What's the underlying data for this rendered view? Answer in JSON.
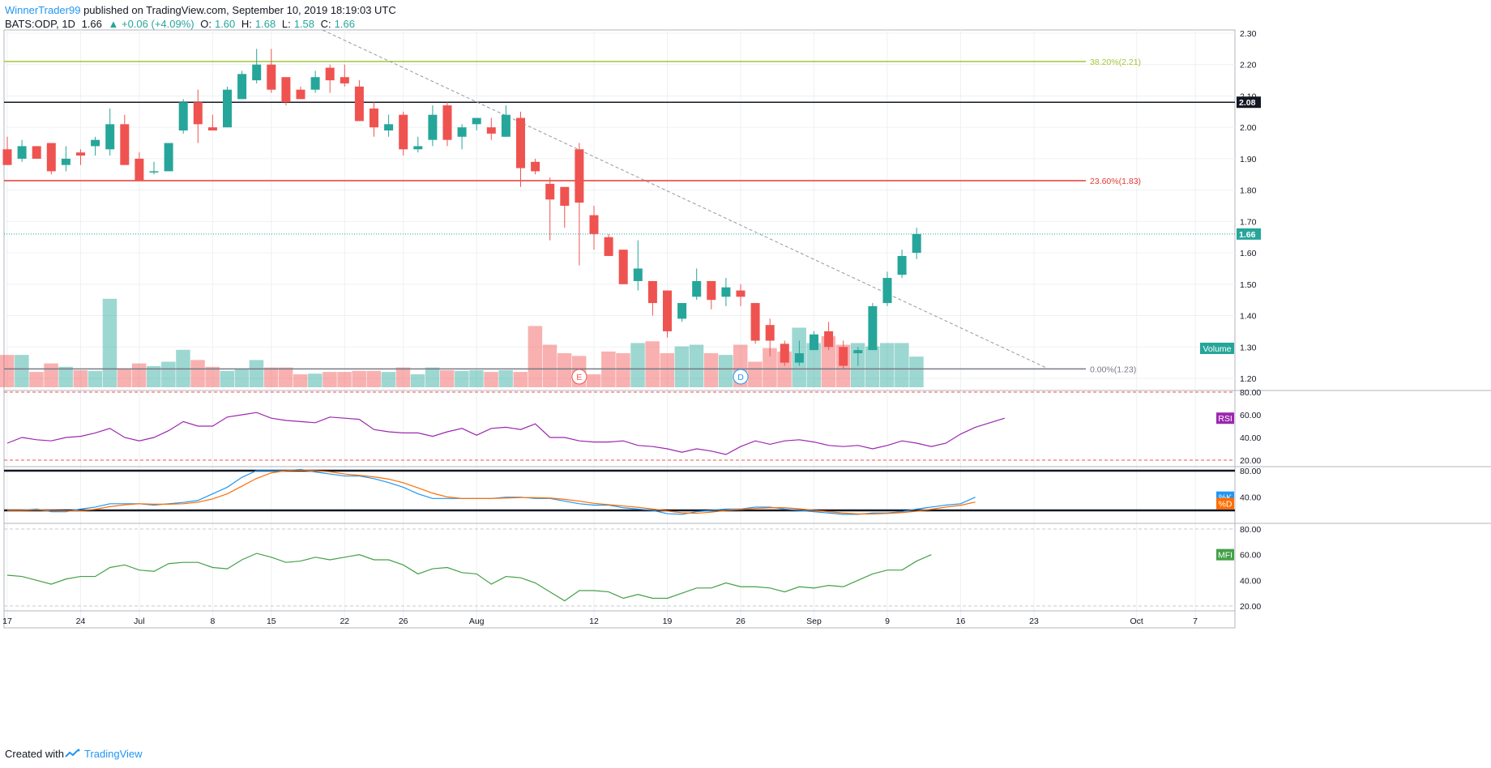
{
  "header": {
    "author": "WinnerTrader99",
    "published": "published on TradingView.com, September 10, 2019 18:19:03 UTC",
    "symbol": "BATS:ODP, 1D",
    "last": "1.66",
    "change": "▲ +0.06 (+4.09%)",
    "o_label": "O:",
    "o": "1.60",
    "h_label": "H:",
    "h": "1.68",
    "l_label": "L:",
    "l": "1.58",
    "c_label": "C:",
    "c": "1.66"
  },
  "footer": {
    "created_with": "Created with",
    "brand": "TradingView"
  },
  "colors": {
    "up": "#26a69a",
    "down": "#ef5350",
    "rsi": "#9c27b0",
    "stoch_k": "#2196f3",
    "stoch_d": "#ff6d00",
    "mfi": "#43a047",
    "fib_382": "#a4c639",
    "fib_236": "#e53935",
    "fib_0": "#787b86"
  },
  "chart_data": {
    "type": "candlestick",
    "price_axis": {
      "min": 1.2,
      "max": 2.3,
      "ticks": [
        "1.20",
        "1.30",
        "1.40",
        "1.50",
        "1.60",
        "1.70",
        "1.80",
        "1.90",
        "2.00",
        "2.10",
        "2.20",
        "2.30"
      ]
    },
    "time_axis": {
      "labels": [
        [
          "17",
          0
        ],
        [
          "24",
          5
        ],
        [
          "Jul",
          9
        ],
        [
          "8",
          14
        ],
        [
          "15",
          18
        ],
        [
          "22",
          23
        ],
        [
          "26",
          27
        ],
        [
          "Aug",
          32
        ],
        [
          "12",
          40
        ],
        [
          "19",
          45
        ],
        [
          "26",
          50
        ],
        [
          "Sep",
          55
        ],
        [
          "9",
          60
        ],
        [
          "16",
          65
        ],
        [
          "23",
          70
        ],
        [
          "Oct",
          77
        ],
        [
          "7",
          81
        ]
      ]
    },
    "candles": [
      {
        "o": 1.93,
        "h": 1.97,
        "l": 1.88,
        "c": 1.88
      },
      {
        "o": 1.9,
        "h": 1.96,
        "l": 1.89,
        "c": 1.94
      },
      {
        "o": 1.94,
        "h": 1.94,
        "l": 1.9,
        "c": 1.9
      },
      {
        "o": 1.95,
        "h": 1.95,
        "l": 1.85,
        "c": 1.86
      },
      {
        "o": 1.88,
        "h": 1.94,
        "l": 1.86,
        "c": 1.9
      },
      {
        "o": 1.92,
        "h": 1.93,
        "l": 1.88,
        "c": 1.91
      },
      {
        "o": 1.94,
        "h": 1.97,
        "l": 1.91,
        "c": 1.96
      },
      {
        "o": 1.93,
        "h": 2.06,
        "l": 1.91,
        "c": 2.01
      },
      {
        "o": 2.01,
        "h": 2.04,
        "l": 1.88,
        "c": 1.88
      },
      {
        "o": 1.9,
        "h": 1.92,
        "l": 1.83,
        "c": 1.83
      },
      {
        "o": 1.86,
        "h": 1.89,
        "l": 1.85,
        "c": 1.86
      },
      {
        "o": 1.86,
        "h": 1.95,
        "l": 1.86,
        "c": 1.95
      },
      {
        "o": 1.99,
        "h": 2.09,
        "l": 1.98,
        "c": 2.08
      },
      {
        "o": 2.08,
        "h": 2.12,
        "l": 1.95,
        "c": 2.01
      },
      {
        "o": 2.0,
        "h": 2.04,
        "l": 1.99,
        "c": 1.99
      },
      {
        "o": 2.0,
        "h": 2.13,
        "l": 2.0,
        "c": 2.12
      },
      {
        "o": 2.09,
        "h": 2.18,
        "l": 2.09,
        "c": 2.17
      },
      {
        "o": 2.15,
        "h": 2.25,
        "l": 2.14,
        "c": 2.2
      },
      {
        "o": 2.2,
        "h": 2.25,
        "l": 2.11,
        "c": 2.12
      },
      {
        "o": 2.16,
        "h": 2.16,
        "l": 2.07,
        "c": 2.08
      },
      {
        "o": 2.12,
        "h": 2.13,
        "l": 2.09,
        "c": 2.09
      },
      {
        "o": 2.12,
        "h": 2.18,
        "l": 2.11,
        "c": 2.16
      },
      {
        "o": 2.19,
        "h": 2.2,
        "l": 2.11,
        "c": 2.15
      },
      {
        "o": 2.16,
        "h": 2.2,
        "l": 2.13,
        "c": 2.14
      },
      {
        "o": 2.13,
        "h": 2.15,
        "l": 2.02,
        "c": 2.02
      },
      {
        "o": 2.06,
        "h": 2.08,
        "l": 1.97,
        "c": 2.0
      },
      {
        "o": 1.99,
        "h": 2.04,
        "l": 1.97,
        "c": 2.01
      },
      {
        "o": 2.04,
        "h": 2.05,
        "l": 1.91,
        "c": 1.93
      },
      {
        "o": 1.93,
        "h": 1.97,
        "l": 1.92,
        "c": 1.94
      },
      {
        "o": 1.96,
        "h": 2.07,
        "l": 1.94,
        "c": 2.04
      },
      {
        "o": 2.07,
        "h": 2.08,
        "l": 1.94,
        "c": 1.96
      },
      {
        "o": 1.97,
        "h": 2.01,
        "l": 1.93,
        "c": 2.0
      },
      {
        "o": 2.01,
        "h": 2.03,
        "l": 1.99,
        "c": 2.03
      },
      {
        "o": 2.0,
        "h": 2.03,
        "l": 1.96,
        "c": 1.98
      },
      {
        "o": 1.97,
        "h": 2.07,
        "l": 1.97,
        "c": 2.04
      },
      {
        "o": 2.03,
        "h": 2.05,
        "l": 1.81,
        "c": 1.87
      },
      {
        "o": 1.89,
        "h": 1.9,
        "l": 1.85,
        "c": 1.86
      },
      {
        "o": 1.82,
        "h": 1.84,
        "l": 1.64,
        "c": 1.77
      },
      {
        "o": 1.81,
        "h": 1.81,
        "l": 1.68,
        "c": 1.75
      },
      {
        "o": 1.93,
        "h": 1.95,
        "l": 1.56,
        "c": 1.76
      },
      {
        "o": 1.72,
        "h": 1.75,
        "l": 1.61,
        "c": 1.66
      },
      {
        "o": 1.65,
        "h": 1.66,
        "l": 1.59,
        "c": 1.59
      },
      {
        "o": 1.61,
        "h": 1.61,
        "l": 1.5,
        "c": 1.5
      },
      {
        "o": 1.51,
        "h": 1.64,
        "l": 1.48,
        "c": 1.55
      },
      {
        "o": 1.51,
        "h": 1.51,
        "l": 1.4,
        "c": 1.44
      },
      {
        "o": 1.48,
        "h": 1.48,
        "l": 1.33,
        "c": 1.35
      },
      {
        "o": 1.39,
        "h": 1.44,
        "l": 1.38,
        "c": 1.44
      },
      {
        "o": 1.46,
        "h": 1.55,
        "l": 1.45,
        "c": 1.51
      },
      {
        "o": 1.51,
        "h": 1.51,
        "l": 1.42,
        "c": 1.45
      },
      {
        "o": 1.46,
        "h": 1.52,
        "l": 1.43,
        "c": 1.49
      },
      {
        "o": 1.48,
        "h": 1.5,
        "l": 1.43,
        "c": 1.46
      },
      {
        "o": 1.44,
        "h": 1.44,
        "l": 1.31,
        "c": 1.32
      },
      {
        "o": 1.37,
        "h": 1.39,
        "l": 1.27,
        "c": 1.32
      },
      {
        "o": 1.31,
        "h": 1.32,
        "l": 1.24,
        "c": 1.25
      },
      {
        "o": 1.25,
        "h": 1.32,
        "l": 1.24,
        "c": 1.28
      },
      {
        "o": 1.29,
        "h": 1.35,
        "l": 1.29,
        "c": 1.34
      },
      {
        "o": 1.35,
        "h": 1.38,
        "l": 1.29,
        "c": 1.3
      },
      {
        "o": 1.3,
        "h": 1.32,
        "l": 1.23,
        "c": 1.24
      },
      {
        "o": 1.28,
        "h": 1.3,
        "l": 1.24,
        "c": 1.29
      },
      {
        "o": 1.29,
        "h": 1.44,
        "l": 1.29,
        "c": 1.43
      },
      {
        "o": 1.44,
        "h": 1.54,
        "l": 1.43,
        "c": 1.52
      },
      {
        "o": 1.53,
        "h": 1.61,
        "l": 1.52,
        "c": 1.59
      },
      {
        "o": 1.6,
        "h": 1.68,
        "l": 1.58,
        "c": 1.66
      }
    ],
    "volume": [
      0.95,
      0.95,
      0.45,
      0.7,
      0.6,
      0.5,
      0.48,
      2.6,
      0.55,
      0.7,
      0.62,
      0.75,
      1.1,
      0.8,
      0.6,
      0.48,
      0.55,
      0.8,
      0.58,
      0.58,
      0.38,
      0.4,
      0.45,
      0.45,
      0.48,
      0.48,
      0.45,
      0.58,
      0.38,
      0.58,
      0.5,
      0.48,
      0.5,
      0.45,
      0.5,
      0.45,
      1.8,
      1.25,
      1.0,
      0.92,
      0.38,
      1.05,
      1.0,
      1.3,
      1.35,
      1.0,
      1.2,
      1.25,
      1.0,
      0.95,
      1.25,
      0.75,
      1.15,
      1.05,
      1.75,
      1.3,
      1.5,
      1.25,
      1.3,
      1.2,
      1.3,
      1.3,
      0.9
    ],
    "fib_levels": [
      {
        "label": "38.20%(2.21)",
        "value": 2.21
      },
      {
        "label": "23.60%(1.83)",
        "value": 1.83
      },
      {
        "label": "0.00%(1.23)",
        "value": 1.23
      }
    ],
    "horizontal_levels": [
      2.08
    ],
    "last_price": {
      "value": 1.66,
      "label": "1.66"
    },
    "resistance_label": "2.08",
    "trendline": [
      {
        "i": 21.5,
        "p": 2.31
      },
      {
        "i": 71,
        "p": 1.23
      }
    ],
    "events": [
      {
        "i": 39,
        "label": "E"
      },
      {
        "i": 50,
        "label": "D"
      }
    ],
    "volume_label": "Volume",
    "rsi": {
      "label": "RSI",
      "levels": [
        80,
        20
      ],
      "ticks": [
        "80.00",
        "60.00",
        "40.00",
        "20.00"
      ],
      "values": [
        35,
        40,
        38,
        37,
        40,
        41,
        44,
        48,
        40,
        37,
        40,
        46,
        54,
        50,
        50,
        58,
        60,
        62,
        57,
        55,
        54,
        53,
        58,
        57,
        56,
        47,
        45,
        44,
        44,
        41,
        45,
        48,
        42,
        48,
        49,
        47,
        52,
        40,
        40,
        37,
        36,
        36,
        37,
        33,
        32,
        30,
        27,
        30,
        28,
        25,
        32,
        37,
        34,
        37,
        38,
        36,
        33,
        32,
        33,
        30,
        33,
        37,
        35,
        32,
        35,
        43,
        49,
        53,
        57
      ]
    },
    "stoch": {
      "label_k": "%K",
      "label_d": "%D",
      "levels": [
        80,
        20
      ],
      "ticks": [
        "80.00",
        "40.00"
      ],
      "k": [
        20,
        20,
        22,
        18,
        18,
        22,
        25,
        30,
        30,
        30,
        28,
        30,
        32,
        35,
        45,
        55,
        70,
        80,
        80,
        80,
        82,
        78,
        75,
        72,
        72,
        68,
        62,
        55,
        45,
        38,
        38,
        38,
        38,
        38,
        40,
        40,
        38,
        38,
        34,
        30,
        28,
        28,
        24,
        22,
        20,
        15,
        14,
        18,
        20,
        22,
        22,
        25,
        25,
        22,
        20,
        18,
        16,
        14,
        14,
        16,
        16,
        18,
        22,
        25,
        28,
        30,
        40
      ]
    },
    "mfi": {
      "label": "MFI",
      "levels": [
        80,
        20
      ],
      "ticks": [
        "80.00",
        "60.00",
        "40.00",
        "20.00"
      ],
      "values": [
        44,
        43,
        40,
        37,
        41,
        43,
        43,
        50,
        52,
        48,
        47,
        53,
        54,
        54,
        50,
        49,
        56,
        61,
        58,
        54,
        55,
        58,
        56,
        58,
        60,
        56,
        56,
        52,
        45,
        49,
        50,
        46,
        45,
        37,
        43,
        42,
        38,
        31,
        24,
        32,
        32,
        31,
        26,
        29,
        26,
        26,
        30,
        34,
        34,
        38,
        35,
        35,
        34,
        31,
        35,
        34,
        36,
        35,
        40,
        45,
        48,
        48,
        55,
        60
      ]
    }
  }
}
